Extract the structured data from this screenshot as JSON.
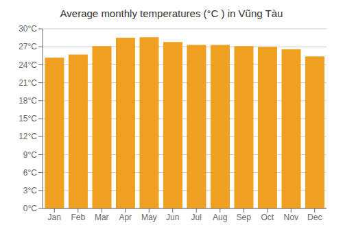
{
  "chart_data": {
    "type": "bar",
    "title": "Average monthly temperatures (°C ) in Vũng Tàu",
    "categories": [
      "Jan",
      "Feb",
      "Mar",
      "Apr",
      "May",
      "Jun",
      "Jul",
      "Aug",
      "Sep",
      "Oct",
      "Nov",
      "Dec"
    ],
    "values": [
      25.2,
      25.7,
      27.1,
      28.5,
      28.6,
      27.8,
      27.3,
      27.3,
      27.1,
      27.0,
      26.6,
      25.4
    ],
    "color": "#F0A020",
    "ylim": [
      0,
      30
    ],
    "yticks": [
      {
        "value": 0,
        "label": "0°C"
      },
      {
        "value": 3,
        "label": "3°C"
      },
      {
        "value": 6,
        "label": "6°C"
      },
      {
        "value": 9,
        "label": "9°C"
      },
      {
        "value": 12,
        "label": "12°C"
      },
      {
        "value": 15,
        "label": "15°C"
      },
      {
        "value": 18,
        "label": "18°C"
      },
      {
        "value": 21,
        "label": "21°C"
      },
      {
        "value": 24,
        "label": "24°C"
      },
      {
        "value": 27,
        "label": "27°C"
      },
      {
        "value": 30,
        "label": "30°C"
      }
    ],
    "grid": true
  }
}
